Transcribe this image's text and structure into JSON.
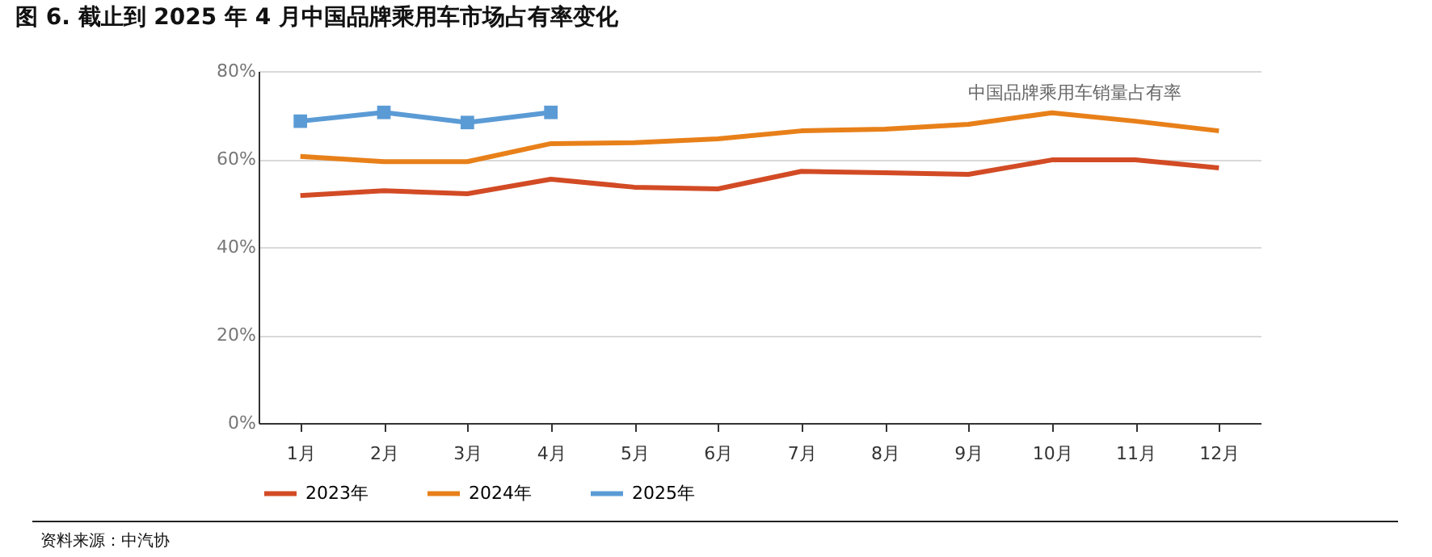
{
  "chart_data": {
    "type": "line",
    "title": "图 6. 截止到 2025 年 4 月中国品牌乘用车市场占有率变化",
    "categories": [
      "1月",
      "2月",
      "3月",
      "4月",
      "5月",
      "6月",
      "7月",
      "8月",
      "9月",
      "10月",
      "11月",
      "12月"
    ],
    "series": [
      {
        "name": "2023年",
        "color": "#d24b25",
        "marker": "none",
        "values": [
          51.7,
          52.8,
          52.1,
          55.4,
          53.6,
          53.2,
          57.2,
          56.9,
          56.5,
          59.8,
          59.8,
          58.0
        ]
      },
      {
        "name": "2024年",
        "color": "#e8801a",
        "marker": "none",
        "values": [
          60.6,
          59.4,
          59.4,
          63.5,
          63.7,
          64.6,
          66.4,
          66.8,
          67.9,
          70.5,
          68.6,
          66.4
        ]
      },
      {
        "name": "2025年",
        "color": "#5b9bd5",
        "marker": "square",
        "values": [
          68.6,
          70.6,
          68.3,
          70.6,
          null,
          null,
          null,
          null,
          null,
          null,
          null,
          null
        ]
      }
    ],
    "ylim": [
      0,
      80
    ],
    "yticks": [
      {
        "value": 0,
        "label": "0%"
      },
      {
        "value": 20,
        "label": "20%"
      },
      {
        "value": 40,
        "label": "40%"
      },
      {
        "value": 60,
        "label": "60%"
      },
      {
        "value": 80,
        "label": "80%"
      }
    ],
    "grid": "y",
    "legend": "bottom",
    "line_style": "solid",
    "annotations": [
      "中国品牌乘用车销量占有率",
      "资料来源：中汽协"
    ]
  }
}
